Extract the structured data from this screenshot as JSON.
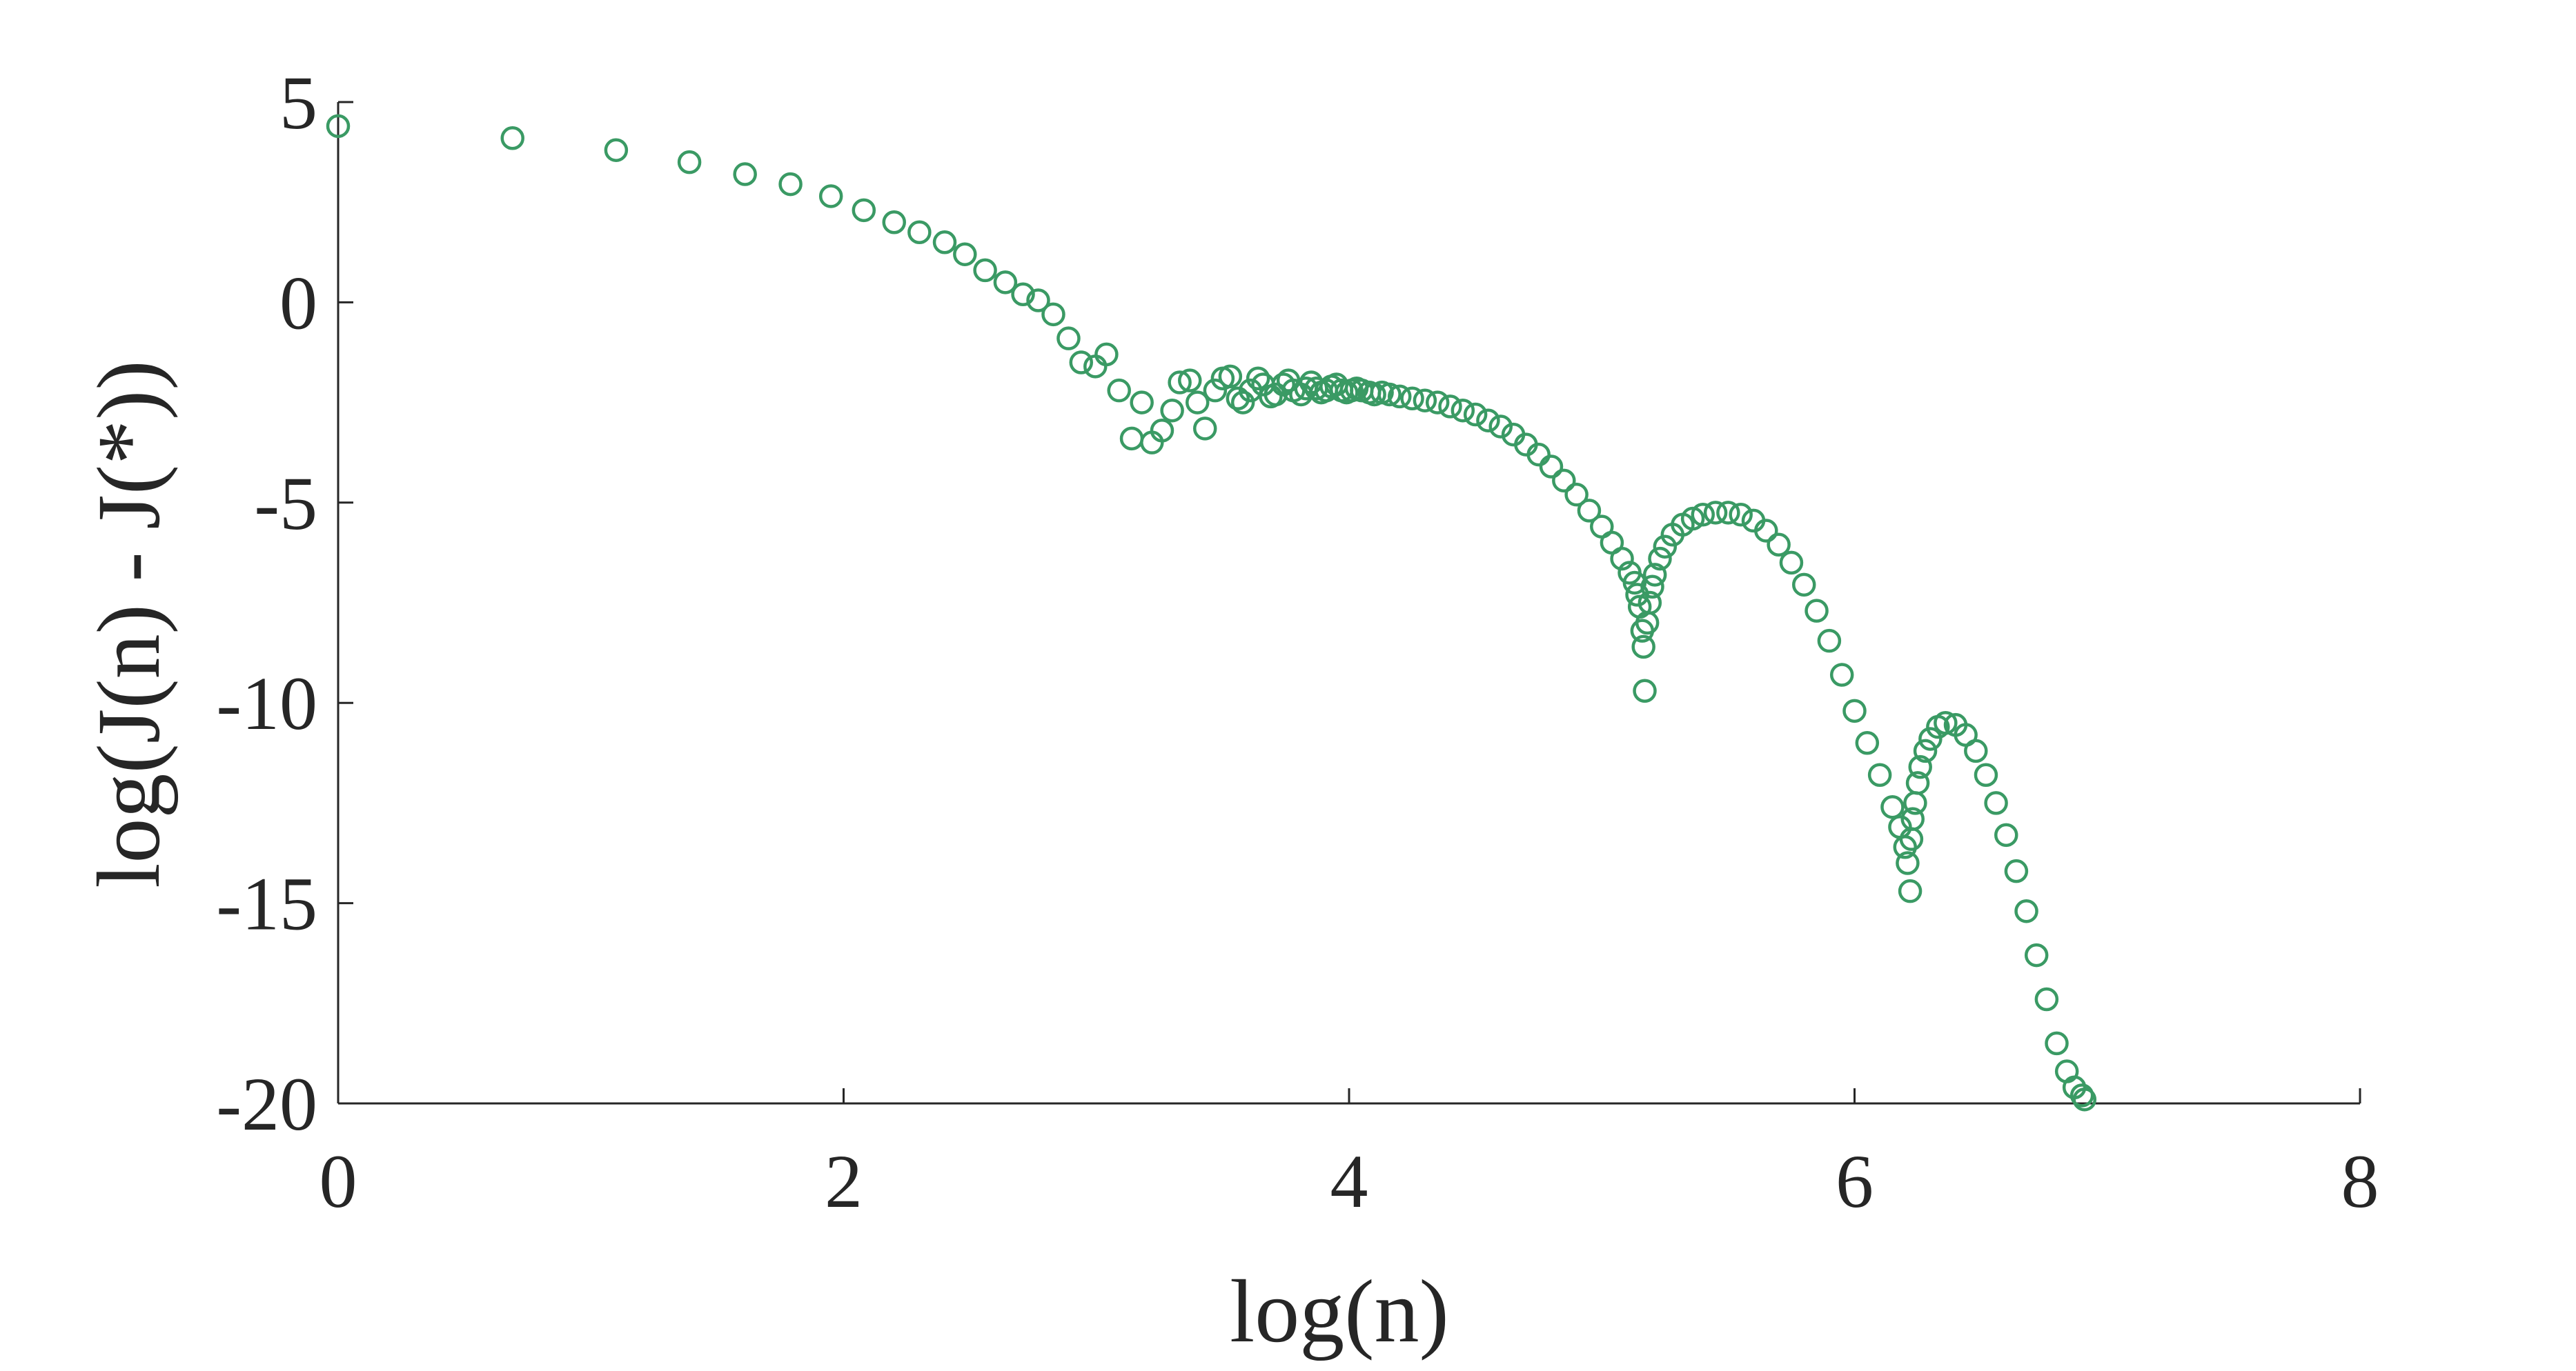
{
  "chart_data": {
    "type": "scatter",
    "xlabel": "log(n)",
    "ylabel": "log(J(n) - J(*))",
    "xlim": [
      0,
      8
    ],
    "ylim": [
      -20,
      5
    ],
    "xticks": [
      "0",
      "2",
      "4",
      "6",
      "8"
    ],
    "yticks": [
      "5",
      "0",
      "-5",
      "-10",
      "-15",
      "-20"
    ],
    "grid": false,
    "marker": "open-circle",
    "color": "#3a9a64",
    "series": [
      {
        "points": [
          [
            0.0,
            4.4
          ],
          [
            0.69,
            4.1
          ],
          [
            1.1,
            3.8
          ],
          [
            1.39,
            3.5
          ],
          [
            1.61,
            3.2
          ],
          [
            1.79,
            2.95
          ],
          [
            1.95,
            2.65
          ],
          [
            2.08,
            2.3
          ],
          [
            2.2,
            2.0
          ],
          [
            2.3,
            1.75
          ],
          [
            2.4,
            1.5
          ],
          [
            2.48,
            1.2
          ],
          [
            2.56,
            0.8
          ],
          [
            2.64,
            0.5
          ],
          [
            2.71,
            0.2
          ],
          [
            2.77,
            0.05
          ],
          [
            2.83,
            -0.3
          ],
          [
            2.89,
            -0.9
          ],
          [
            2.94,
            -1.5
          ],
          [
            2.996,
            -1.6
          ],
          [
            3.04,
            -1.3
          ],
          [
            3.09,
            -2.2
          ],
          [
            3.14,
            -3.4
          ],
          [
            3.18,
            -2.5
          ],
          [
            3.22,
            -3.5
          ],
          [
            3.26,
            -3.2
          ],
          [
            3.3,
            -2.7
          ],
          [
            3.33,
            -2.0
          ],
          [
            3.37,
            -1.95
          ],
          [
            3.4,
            -2.5
          ],
          [
            3.43,
            -3.15
          ],
          [
            3.47,
            -2.2
          ],
          [
            3.5,
            -1.9
          ],
          [
            3.53,
            -1.85
          ],
          [
            3.56,
            -2.4
          ],
          [
            3.58,
            -2.5
          ],
          [
            3.61,
            -2.2
          ],
          [
            3.64,
            -1.9
          ],
          [
            3.66,
            -2.05
          ],
          [
            3.69,
            -2.35
          ],
          [
            3.71,
            -2.3
          ],
          [
            3.74,
            -2.05
          ],
          [
            3.76,
            -1.95
          ],
          [
            3.78,
            -2.2
          ],
          [
            3.81,
            -2.3
          ],
          [
            3.83,
            -2.15
          ],
          [
            3.85,
            -2.0
          ],
          [
            3.87,
            -2.15
          ],
          [
            3.89,
            -2.25
          ],
          [
            3.91,
            -2.2
          ],
          [
            3.93,
            -2.1
          ],
          [
            3.95,
            -2.05
          ],
          [
            3.97,
            -2.2
          ],
          [
            3.99,
            -2.25
          ],
          [
            4.01,
            -2.2
          ],
          [
            4.03,
            -2.15
          ],
          [
            4.05,
            -2.2
          ],
          [
            4.08,
            -2.25
          ],
          [
            4.1,
            -2.3
          ],
          [
            4.13,
            -2.25
          ],
          [
            4.16,
            -2.3
          ],
          [
            4.2,
            -2.35
          ],
          [
            4.25,
            -2.4
          ],
          [
            4.3,
            -2.45
          ],
          [
            4.35,
            -2.5
          ],
          [
            4.4,
            -2.6
          ],
          [
            4.45,
            -2.7
          ],
          [
            4.5,
            -2.8
          ],
          [
            4.55,
            -2.95
          ],
          [
            4.6,
            -3.1
          ],
          [
            4.65,
            -3.3
          ],
          [
            4.7,
            -3.55
          ],
          [
            4.75,
            -3.8
          ],
          [
            4.8,
            -4.1
          ],
          [
            4.85,
            -4.45
          ],
          [
            4.9,
            -4.8
          ],
          [
            4.95,
            -5.2
          ],
          [
            5.0,
            -5.6
          ],
          [
            5.04,
            -6.0
          ],
          [
            5.08,
            -6.4
          ],
          [
            5.11,
            -6.75
          ],
          [
            5.13,
            -7.0
          ],
          [
            5.14,
            -7.3
          ],
          [
            5.15,
            -7.6
          ],
          [
            5.16,
            -8.2
          ],
          [
            5.165,
            -8.6
          ],
          [
            5.17,
            -9.7
          ],
          [
            5.18,
            -8.0
          ],
          [
            5.19,
            -7.5
          ],
          [
            5.2,
            -7.1
          ],
          [
            5.21,
            -6.8
          ],
          [
            5.23,
            -6.4
          ],
          [
            5.25,
            -6.1
          ],
          [
            5.28,
            -5.8
          ],
          [
            5.32,
            -5.55
          ],
          [
            5.36,
            -5.4
          ],
          [
            5.4,
            -5.3
          ],
          [
            5.45,
            -5.25
          ],
          [
            5.5,
            -5.25
          ],
          [
            5.55,
            -5.3
          ],
          [
            5.6,
            -5.45
          ],
          [
            5.65,
            -5.7
          ],
          [
            5.7,
            -6.05
          ],
          [
            5.75,
            -6.5
          ],
          [
            5.8,
            -7.05
          ],
          [
            5.85,
            -7.7
          ],
          [
            5.9,
            -8.45
          ],
          [
            5.95,
            -9.3
          ],
          [
            6.0,
            -10.2
          ],
          [
            6.05,
            -11.0
          ],
          [
            6.1,
            -11.8
          ],
          [
            6.15,
            -12.6
          ],
          [
            6.18,
            -13.1
          ],
          [
            6.2,
            -13.6
          ],
          [
            6.21,
            -14.0
          ],
          [
            6.22,
            -14.7
          ],
          [
            6.225,
            -13.4
          ],
          [
            6.23,
            -12.9
          ],
          [
            6.24,
            -12.5
          ],
          [
            6.25,
            -12.0
          ],
          [
            6.26,
            -11.6
          ],
          [
            6.28,
            -11.2
          ],
          [
            6.3,
            -10.9
          ],
          [
            6.33,
            -10.6
          ],
          [
            6.36,
            -10.5
          ],
          [
            6.4,
            -10.55
          ],
          [
            6.44,
            -10.8
          ],
          [
            6.48,
            -11.2
          ],
          [
            6.52,
            -11.8
          ],
          [
            6.56,
            -12.5
          ],
          [
            6.6,
            -13.3
          ],
          [
            6.64,
            -14.2
          ],
          [
            6.68,
            -15.2
          ],
          [
            6.72,
            -16.3
          ],
          [
            6.76,
            -17.4
          ],
          [
            6.8,
            -18.5
          ],
          [
            6.84,
            -19.2
          ],
          [
            6.87,
            -19.6
          ],
          [
            6.9,
            -19.8
          ],
          [
            6.91,
            -19.9
          ]
        ]
      }
    ]
  }
}
